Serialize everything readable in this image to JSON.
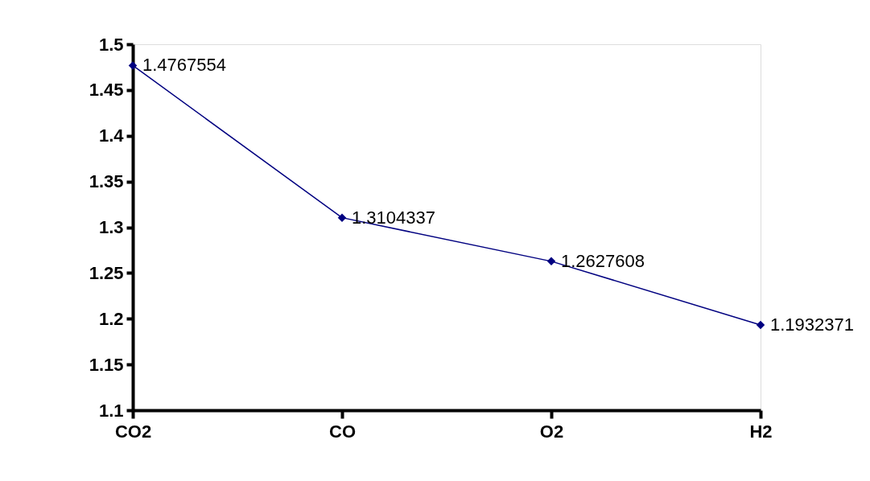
{
  "chart_data": {
    "type": "line",
    "categories": [
      "CO2",
      "CO",
      "O2",
      "H2"
    ],
    "series": [
      {
        "color": "#000080",
        "values": [
          1.4767554,
          1.3104337,
          1.2627608,
          1.1932371
        ]
      }
    ],
    "ylim": [
      1.1,
      1.5
    ],
    "yticks": [
      1.1,
      1.15,
      1.2,
      1.25,
      1.3,
      1.35,
      1.4,
      1.45,
      1.5
    ],
    "grid": false,
    "legend": false,
    "marker": "diamond",
    "line_style": "solid",
    "data_labels": true
  }
}
